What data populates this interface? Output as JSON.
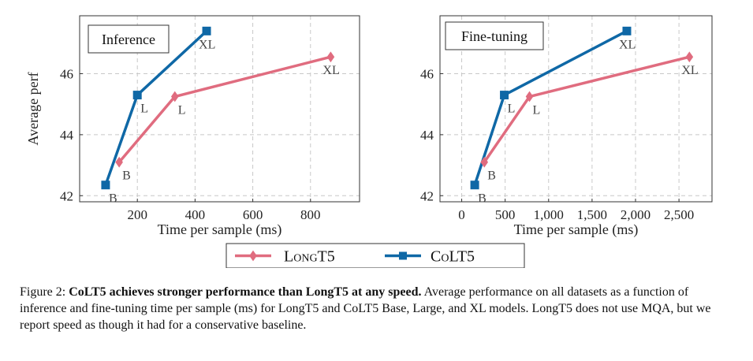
{
  "chart_data": [
    {
      "type": "line",
      "title": "Inference",
      "xlabel": "Time per sample (ms)",
      "ylabel": "Average perf",
      "xlim": [
        0,
        970
      ],
      "ylim": [
        41.8,
        47.9
      ],
      "xticks": [
        200,
        400,
        600,
        800
      ],
      "xtick_labels": [
        "200",
        "400",
        "600",
        "800"
      ],
      "yticks": [
        42,
        44,
        46
      ],
      "ytick_labels": [
        "42",
        "44",
        "46"
      ],
      "grid": true,
      "series": [
        {
          "name": "LongT5",
          "color": "#e06c7f",
          "marker": "diamond",
          "x": [
            137,
            330,
            870
          ],
          "y": [
            43.1,
            45.25,
            46.55
          ],
          "labels": [
            "B",
            "L",
            "XL"
          ]
        },
        {
          "name": "CoLT5",
          "color": "#0f68a6",
          "marker": "square",
          "x": [
            90,
            200,
            440
          ],
          "y": [
            42.35,
            45.3,
            47.4
          ],
          "labels": [
            "B",
            "L",
            "XL"
          ]
        }
      ]
    },
    {
      "type": "line",
      "title": "Fine-tuning",
      "xlabel": "Time per sample (ms)",
      "ylabel": "",
      "xlim": [
        -250,
        2880
      ],
      "ylim": [
        41.8,
        47.9
      ],
      "xticks": [
        0,
        500,
        1000,
        1500,
        2000,
        2500
      ],
      "xtick_labels": [
        "0",
        "500",
        "1,000",
        "1,500",
        "2,000",
        "2,500"
      ],
      "yticks": [
        42,
        44,
        46
      ],
      "ytick_labels": [
        "42",
        "44",
        "46"
      ],
      "grid": true,
      "series": [
        {
          "name": "LongT5",
          "color": "#e06c7f",
          "marker": "diamond",
          "x": [
            260,
            780,
            2620
          ],
          "y": [
            43.1,
            45.25,
            46.55
          ],
          "labels": [
            "B",
            "L",
            "XL"
          ]
        },
        {
          "name": "CoLT5",
          "color": "#0f68a6",
          "marker": "square",
          "x": [
            150,
            490,
            1900
          ],
          "y": [
            42.35,
            45.3,
            47.4
          ],
          "labels": [
            "B",
            "L",
            "XL"
          ]
        }
      ]
    }
  ],
  "legend": {
    "entries": [
      {
        "label": "LongT5",
        "color": "#e06c7f",
        "marker": "diamond"
      },
      {
        "label": "CoLT5",
        "color": "#0f68a6",
        "marker": "square"
      }
    ]
  },
  "caption": {
    "figure_label": "Figure 2:",
    "bold_text": "CoLT5 achieves stronger performance than LongT5 at any speed.",
    "body_text": "Average performance on all datasets as a function of inference and fine-tuning time per sample (ms) for LongT5 and CoLT5 Base, Large, and XL models. LongT5 does not use MQA, but we report speed as though it had for a conservative baseline."
  }
}
